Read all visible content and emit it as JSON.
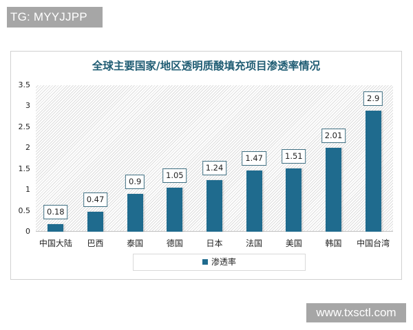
{
  "watermarks": {
    "top_left": "TG: MYYJJPP",
    "bottom_right": "www.txsctl.com"
  },
  "chart_data": {
    "type": "bar",
    "title": "全球主要国家/地区透明质酸填充项目渗透率情况",
    "xlabel": "",
    "ylabel": "",
    "ylim": [
      0,
      3.5
    ],
    "yticks": [
      "0",
      "0.5",
      "1",
      "1.5",
      "2",
      "2.5",
      "3",
      "3.5"
    ],
    "grid": false,
    "legend_position": "bottom",
    "categories": [
      "中国大陆",
      "巴西",
      "泰国",
      "德国",
      "日本",
      "法国",
      "美国",
      "韩国",
      "中国台湾"
    ],
    "series": [
      {
        "name": "渗透率",
        "color": "#1f6b8e",
        "values": [
          0.18,
          0.47,
          0.9,
          1.05,
          1.24,
          1.47,
          1.51,
          2.01,
          2.9
        ]
      }
    ]
  }
}
